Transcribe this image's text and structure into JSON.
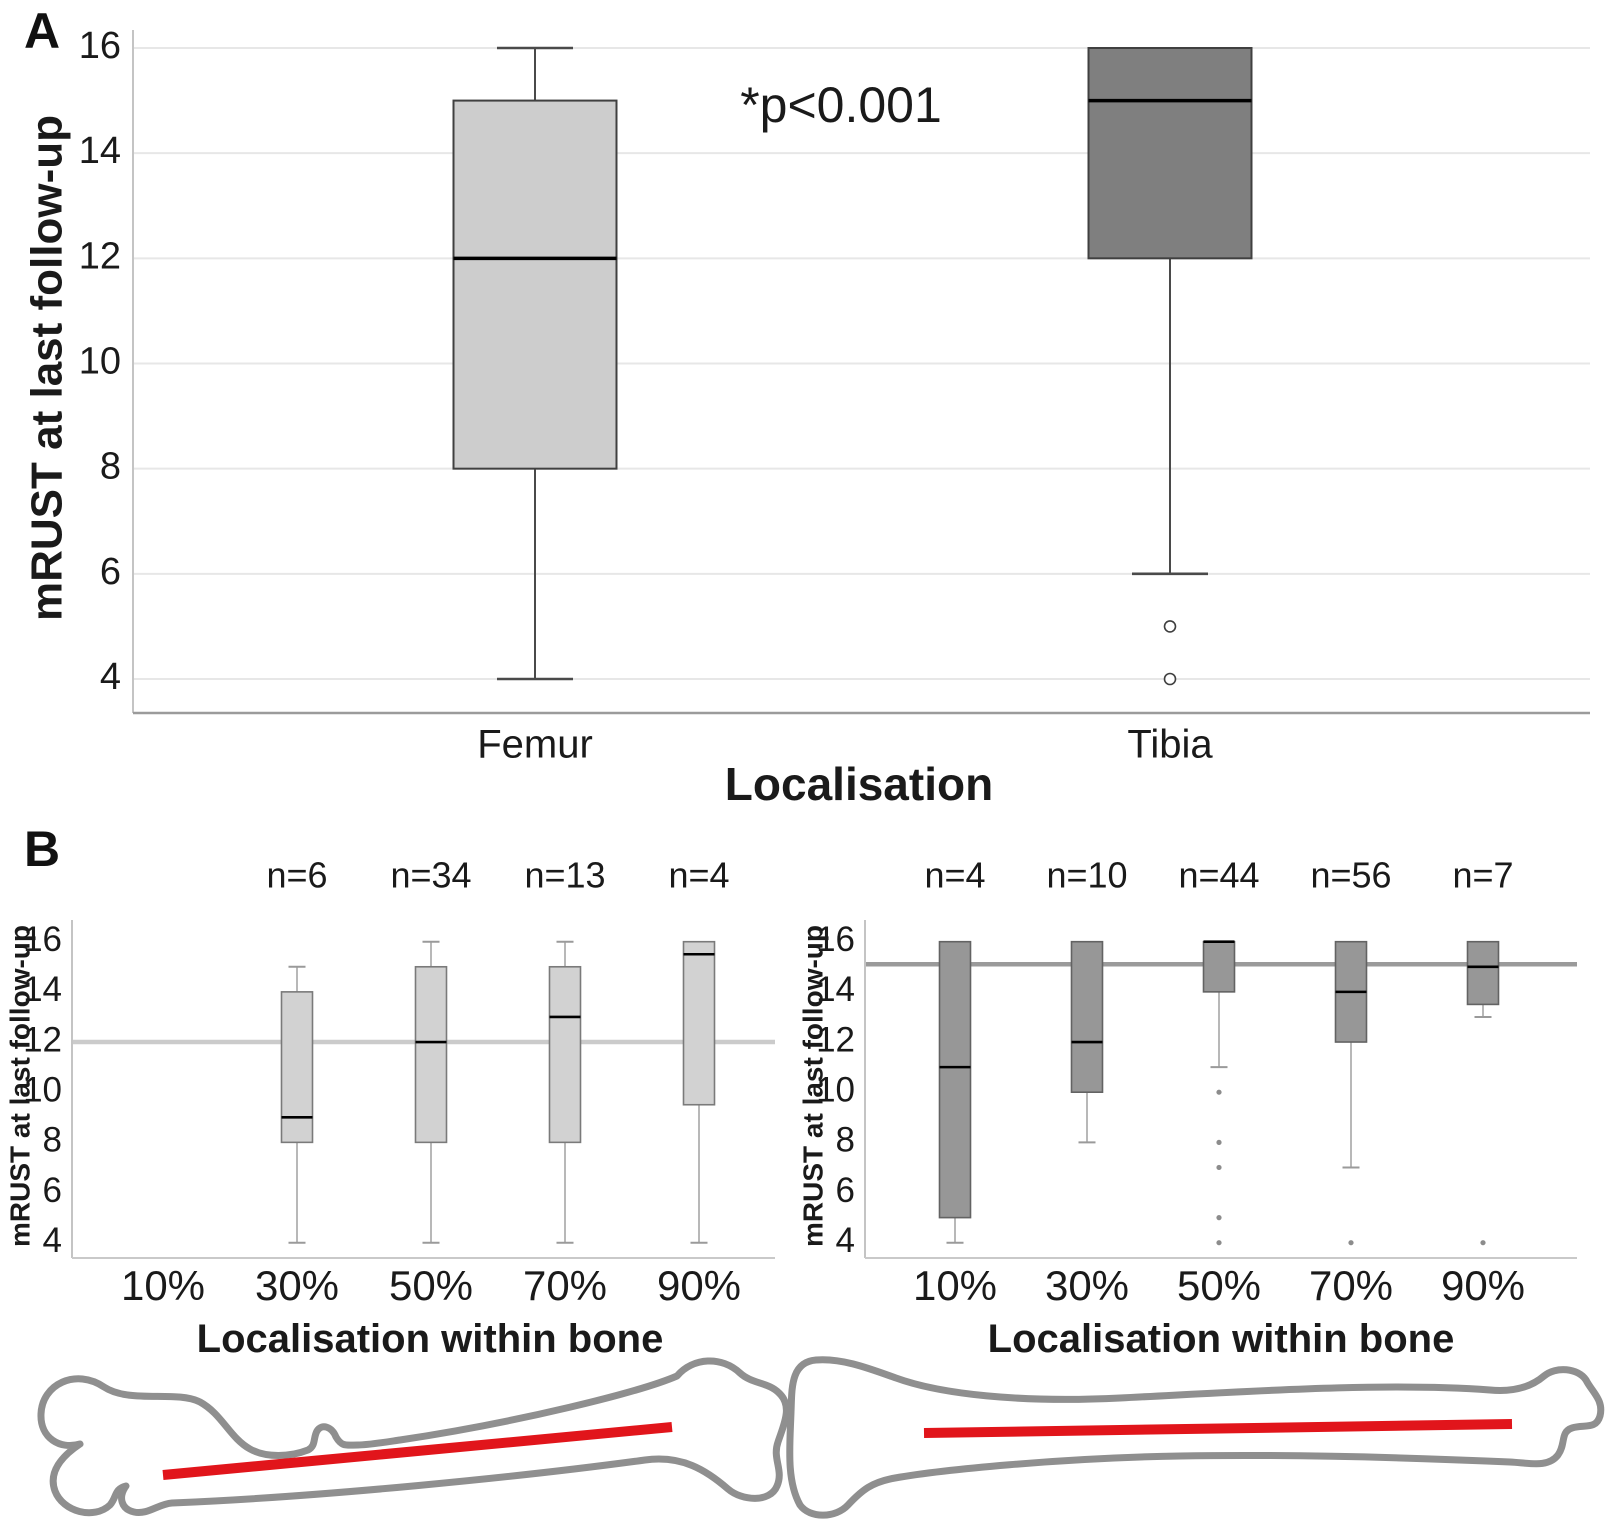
{
  "figure": {
    "panel_a_label": "A",
    "panel_b_label": "B"
  },
  "colors": {
    "femur_box_fill": "#cdcdcd",
    "tibia_box_fill_panel_a": "#7f7f7f",
    "tibia_box_fill_panel_b": "#979797",
    "reference_line_femur": "#cbcbcb",
    "reference_line_tibia": "#9a9a9a",
    "bone_outline": "#8f8f8f",
    "intramedullary_line_red": "#e1151b"
  },
  "chart_data": [
    {
      "id": "panel-a",
      "type": "boxplot",
      "ylabel": "mRUST at last follow-up",
      "xlabel": "Localisation",
      "annotation": "*p<0.001",
      "ylim": [
        4,
        16
      ],
      "yticks": [
        4,
        6,
        8,
        10,
        12,
        14,
        16
      ],
      "grid": true,
      "categories": [
        "Femur",
        "Tibia"
      ],
      "boxes": [
        {
          "category": "Femur",
          "fill": "#cdcdcd",
          "q1": 8,
          "median": 12,
          "q3": 15,
          "whisker_low": 4,
          "whisker_high": 16,
          "outliers": []
        },
        {
          "category": "Tibia",
          "fill": "#7f7f7f",
          "q1": 12,
          "median": 15,
          "q3": 16,
          "whisker_low": 6,
          "whisker_high": null,
          "outliers": [
            5,
            4
          ]
        }
      ]
    },
    {
      "id": "panel-b-femur",
      "type": "boxplot",
      "ylabel": "mRUST at last follow-up",
      "xlabel": "Localisation within bone",
      "ylim": [
        4,
        16
      ],
      "yticks": [
        4,
        6,
        8,
        10,
        12,
        14,
        16
      ],
      "grid": false,
      "reference_line": 12,
      "categories": [
        "10%",
        "30%",
        "50%",
        "70%",
        "90%"
      ],
      "counts": [
        null,
        "n=6",
        "n=34",
        "n=13",
        "n=4"
      ],
      "box_fill": "#d2d2d2",
      "boxes": [
        null,
        {
          "category": "30%",
          "q1": 8,
          "median": 9,
          "q3": 14,
          "whisker_low": 4,
          "whisker_high": 15,
          "outliers": []
        },
        {
          "category": "50%",
          "q1": 8,
          "median": 12,
          "q3": 15,
          "whisker_low": 4,
          "whisker_high": 16,
          "outliers": []
        },
        {
          "category": "70%",
          "q1": 8,
          "median": 13,
          "q3": 15,
          "whisker_low": 4,
          "whisker_high": 16,
          "outliers": []
        },
        {
          "category": "90%",
          "q1": 9.5,
          "median": 15.5,
          "q3": 16,
          "whisker_low": 4,
          "whisker_high": null,
          "outliers": []
        }
      ]
    },
    {
      "id": "panel-b-tibia",
      "type": "boxplot",
      "ylabel": "mRUST at last follow-up",
      "xlabel": "Localisation within bone",
      "ylim": [
        4,
        16
      ],
      "yticks": [
        4,
        6,
        8,
        10,
        12,
        14,
        16
      ],
      "grid": false,
      "reference_line": 15.1,
      "categories": [
        "10%",
        "30%",
        "50%",
        "70%",
        "90%"
      ],
      "counts": [
        "n=4",
        "n=10",
        "n=44",
        "n=56",
        "n=7"
      ],
      "box_fill": "#979797",
      "boxes": [
        {
          "category": "10%",
          "q1": 5,
          "median": 11,
          "q3": 16,
          "whisker_low": 4,
          "whisker_high": null,
          "outliers": []
        },
        {
          "category": "30%",
          "q1": 10,
          "median": 12,
          "q3": 16,
          "whisker_low": 8,
          "whisker_high": null,
          "outliers": []
        },
        {
          "category": "50%",
          "q1": 14,
          "median": 16,
          "q3": 16,
          "whisker_low": 11,
          "whisker_high": null,
          "outliers": [
            10,
            8,
            7,
            5,
            4
          ]
        },
        {
          "category": "70%",
          "q1": 12,
          "median": 14,
          "q3": 16,
          "whisker_low": 7,
          "whisker_high": null,
          "outliers": [
            4
          ]
        },
        {
          "category": "90%",
          "q1": 13.5,
          "median": 15,
          "q3": 16,
          "whisker_low": 13,
          "whisker_high": null,
          "outliers": [
            4
          ]
        }
      ]
    }
  ]
}
